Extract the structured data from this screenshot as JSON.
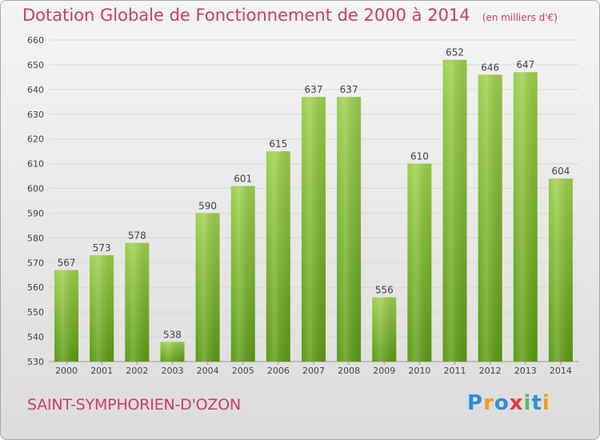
{
  "header": {
    "title": "Dotation Globale de Fonctionnement de 2000 à 2014",
    "unit": "(en milliers d'€)"
  },
  "footer": {
    "commune": "SAINT-SYMPHORIEN-D'OZON",
    "logo": "Proxiti"
  },
  "colors": {
    "bar_top": "#9cd04a",
    "bar_bottom": "#5c9a12",
    "title": "#d03a6a",
    "grid": "#d8d8d8"
  },
  "chart_data": {
    "type": "bar",
    "categories": [
      "2000",
      "2001",
      "2002",
      "2003",
      "2004",
      "2005",
      "2006",
      "2007",
      "2008",
      "2009",
      "2010",
      "2011",
      "2012",
      "2013",
      "2014"
    ],
    "values": [
      567,
      573,
      578,
      538,
      590,
      601,
      615,
      637,
      637,
      556,
      610,
      652,
      646,
      647,
      604
    ],
    "ylim": [
      530,
      660
    ],
    "yticks": [
      530,
      540,
      550,
      560,
      570,
      580,
      590,
      600,
      610,
      620,
      630,
      640,
      650,
      660
    ],
    "grid": true,
    "title": "Dotation Globale de Fonctionnement de 2000 à 2014",
    "xlabel": "",
    "ylabel": ""
  }
}
